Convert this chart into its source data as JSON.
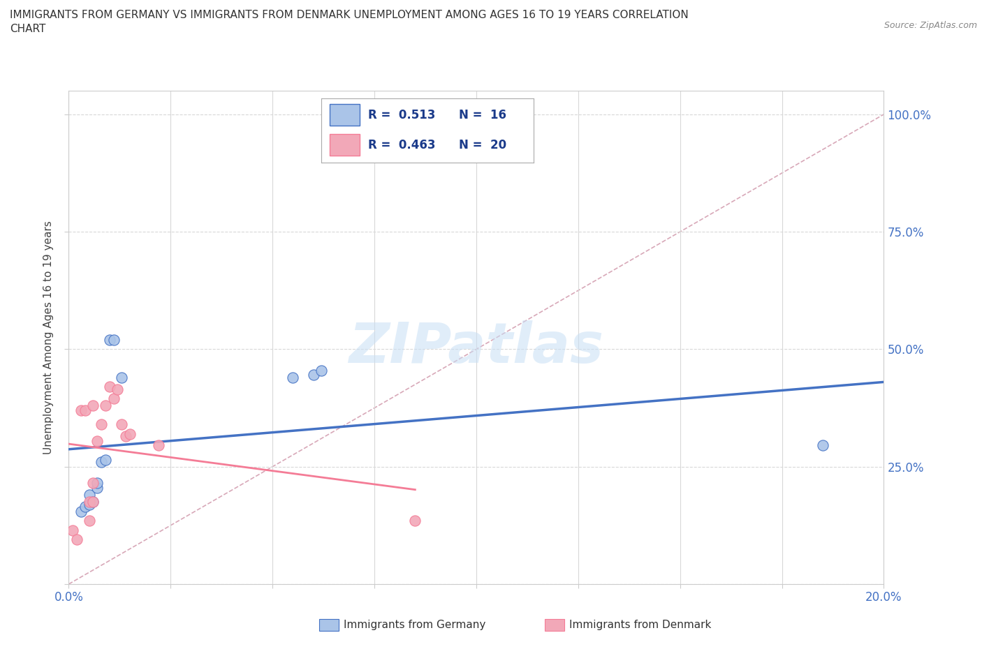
{
  "title_line1": "IMMIGRANTS FROM GERMANY VS IMMIGRANTS FROM DENMARK UNEMPLOYMENT AMONG AGES 16 TO 19 YEARS CORRELATION",
  "title_line2": "CHART",
  "source": "Source: ZipAtlas.com",
  "ylabel": "Unemployment Among Ages 16 to 19 years",
  "xlim": [
    0.0,
    0.2
  ],
  "ylim": [
    0.0,
    1.05
  ],
  "xticks": [
    0.0,
    0.025,
    0.05,
    0.075,
    0.1,
    0.125,
    0.15,
    0.175,
    0.2
  ],
  "xtick_labels": [
    "0.0%",
    "",
    "",
    "",
    "",
    "",
    "",
    "",
    "20.0%"
  ],
  "yticks": [
    0.0,
    0.25,
    0.5,
    0.75,
    1.0
  ],
  "ytick_labels_right": [
    "",
    "25.0%",
    "50.0%",
    "75.0%",
    "100.0%"
  ],
  "germany_x": [
    0.003,
    0.004,
    0.005,
    0.005,
    0.006,
    0.007,
    0.007,
    0.008,
    0.009,
    0.01,
    0.011,
    0.013,
    0.055,
    0.06,
    0.062,
    0.185
  ],
  "germany_y": [
    0.155,
    0.165,
    0.17,
    0.19,
    0.175,
    0.205,
    0.215,
    0.26,
    0.265,
    0.52,
    0.52,
    0.44,
    0.44,
    0.445,
    0.455,
    0.295
  ],
  "denmark_x": [
    0.001,
    0.002,
    0.003,
    0.004,
    0.005,
    0.005,
    0.006,
    0.006,
    0.006,
    0.007,
    0.008,
    0.009,
    0.01,
    0.011,
    0.012,
    0.013,
    0.014,
    0.015,
    0.022,
    0.085
  ],
  "denmark_y": [
    0.115,
    0.095,
    0.37,
    0.37,
    0.135,
    0.175,
    0.175,
    0.215,
    0.38,
    0.305,
    0.34,
    0.38,
    0.42,
    0.395,
    0.415,
    0.34,
    0.315,
    0.32,
    0.295,
    0.135
  ],
  "germany_color": "#aac4e8",
  "denmark_color": "#f2a8b8",
  "germany_line_color": "#4472c4",
  "denmark_line_color": "#f47c96",
  "diagonal_color": "#d8a8b8",
  "R_germany": 0.513,
  "N_germany": 16,
  "R_denmark": 0.463,
  "N_denmark": 20,
  "watermark": "ZIPatlas",
  "background_color": "#ffffff",
  "grid_color": "#d8d8d8"
}
